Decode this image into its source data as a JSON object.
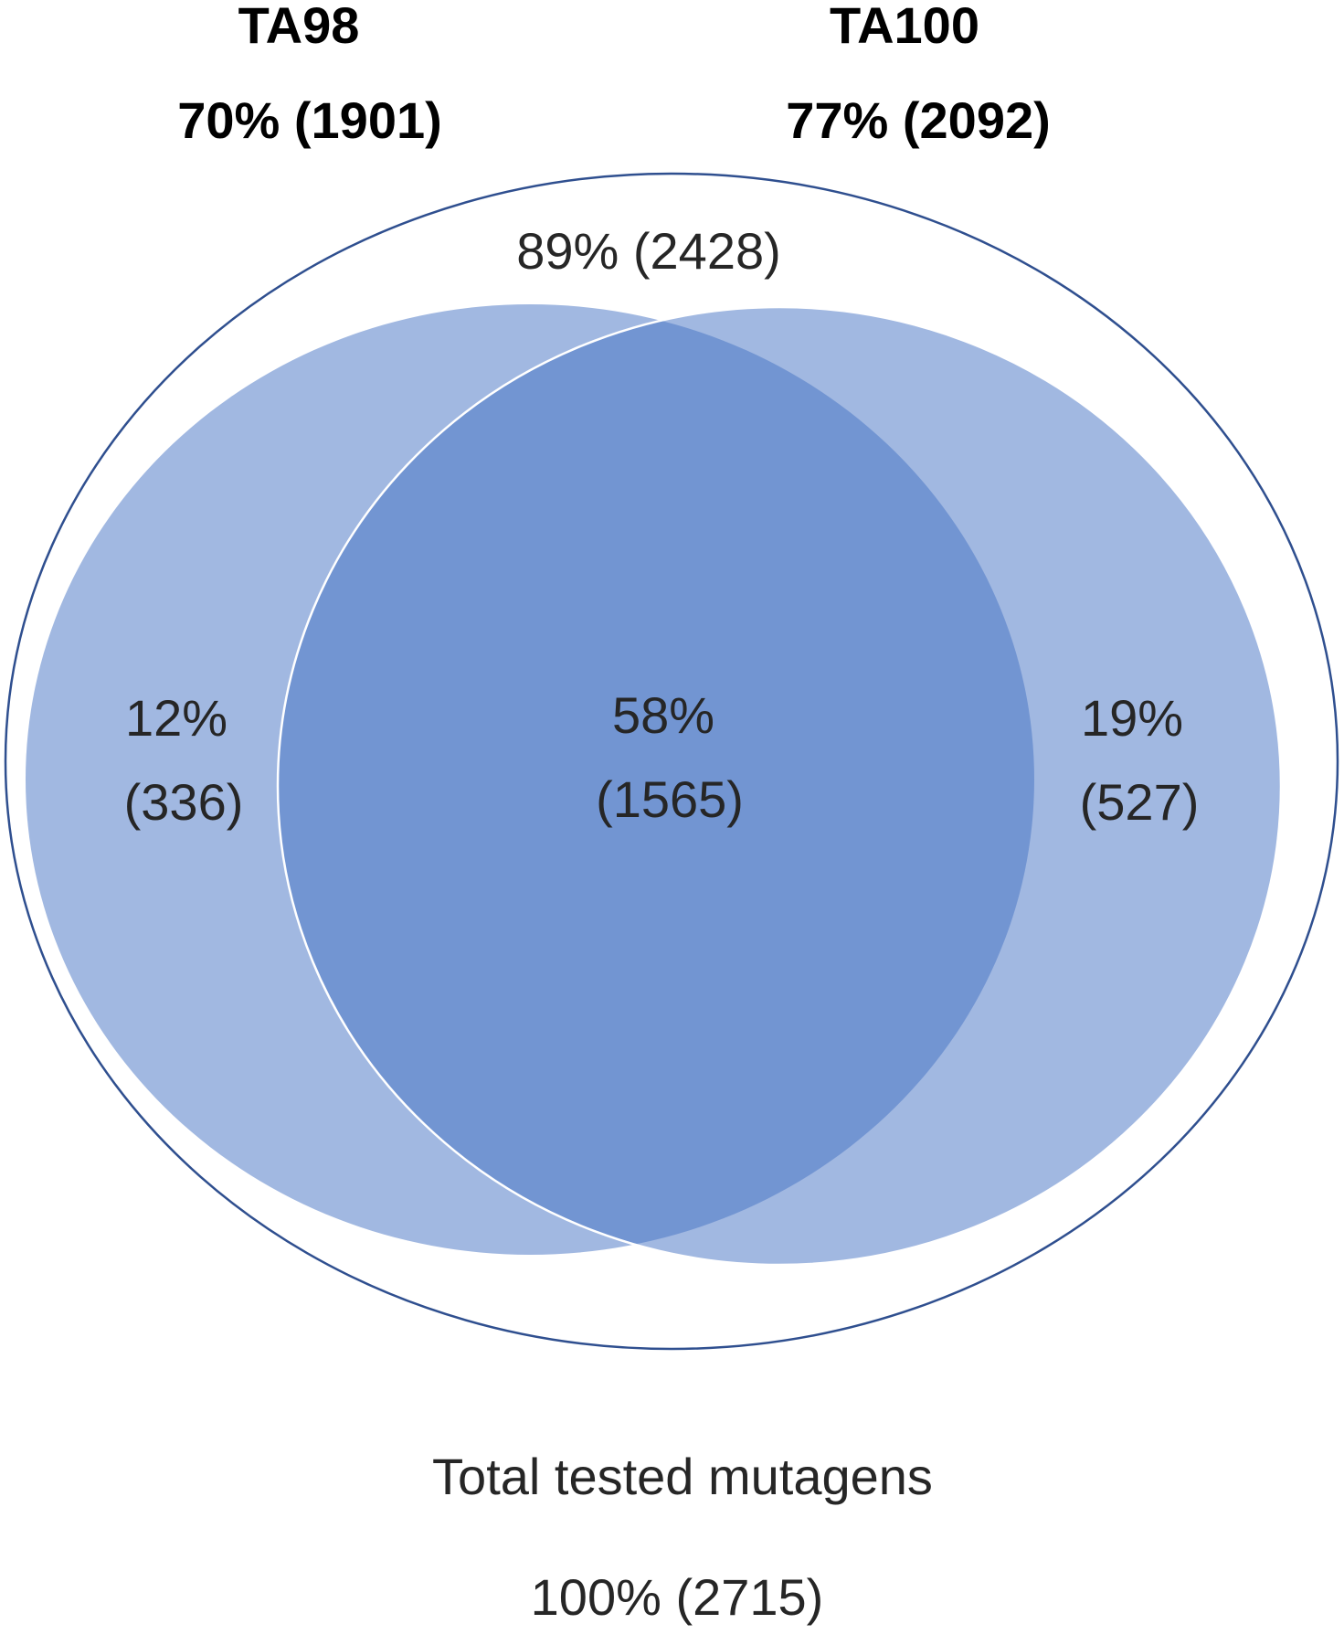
{
  "sets": [
    {
      "name": "TA98",
      "summary": "70% (1901)"
    },
    {
      "name": "TA100",
      "summary": "77% (2092)"
    }
  ],
  "union_label": "89% (2428)",
  "regions": {
    "ta98_only": {
      "percent": "12%",
      "count": "(336)"
    },
    "both": {
      "percent": "58%",
      "count": "(1565)"
    },
    "ta100_only": {
      "percent": "19%",
      "count": "(527)"
    }
  },
  "total": {
    "label": "Total tested mutagens",
    "summary": "100% (2715)"
  }
}
